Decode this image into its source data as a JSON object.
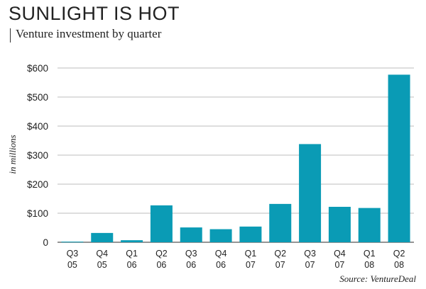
{
  "header": {
    "title": "SUNLIGHT IS HOT",
    "subtitle": "Venture investment by quarter"
  },
  "source": "Source: VentureDeal",
  "chart_data": {
    "type": "bar",
    "title": "SUNLIGHT IS HOT",
    "subtitle": "Venture investment by quarter",
    "ylabel": "in millions",
    "xlabel": "",
    "ylim": [
      0,
      600
    ],
    "yticks": [
      0,
      100,
      200,
      300,
      400,
      500,
      600
    ],
    "ytick_labels": [
      "0",
      "$100",
      "$200",
      "$300",
      "$400",
      "$500",
      "$600"
    ],
    "grid": true,
    "bar_color": "#0a9bb5",
    "categories": [
      {
        "q": "Q3",
        "y": "05"
      },
      {
        "q": "Q4",
        "y": "05"
      },
      {
        "q": "Q1",
        "y": "06"
      },
      {
        "q": "Q2",
        "y": "06"
      },
      {
        "q": "Q3",
        "y": "06"
      },
      {
        "q": "Q4",
        "y": "06"
      },
      {
        "q": "Q1",
        "y": "07"
      },
      {
        "q": "Q2",
        "y": "07"
      },
      {
        "q": "Q3",
        "y": "07"
      },
      {
        "q": "Q4",
        "y": "07"
      },
      {
        "q": "Q1",
        "y": "08"
      },
      {
        "q": "Q2",
        "y": "08"
      }
    ],
    "values": [
      2,
      32,
      7,
      127,
      51,
      45,
      54,
      132,
      338,
      122,
      118,
      577
    ],
    "source": "Source: VentureDeal"
  }
}
